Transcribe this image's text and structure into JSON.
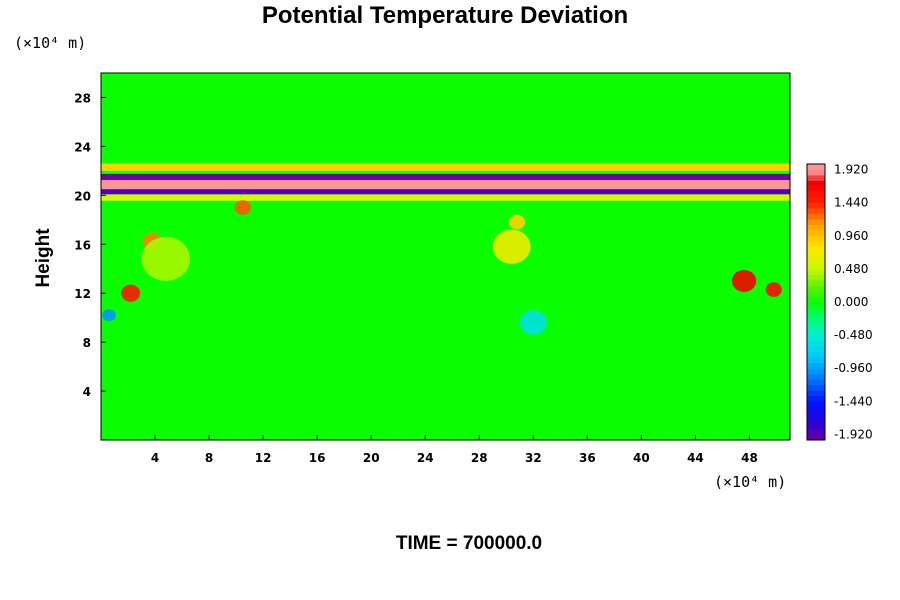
{
  "chart_data": {
    "type": "heatmap",
    "title": "Potential Temperature Deviation",
    "ylabel": "Height",
    "x_unit_label": "(×10⁴ m)",
    "y_unit_label": "(×10⁴ m)",
    "xlim": [
      0,
      51
    ],
    "ylim": [
      0,
      30
    ],
    "x_ticks": [
      4,
      8,
      12,
      16,
      20,
      24,
      28,
      32,
      36,
      40,
      44,
      48
    ],
    "x_tick_labels": [
      "4",
      "8",
      "12",
      "16",
      "20",
      "24",
      "28",
      "32",
      "36",
      "40",
      "44",
      "48"
    ],
    "y_ticks": [
      4,
      8,
      12,
      16,
      20,
      24,
      28
    ],
    "y_tick_labels": [
      "4",
      "8",
      "12",
      "16",
      "20",
      "24",
      "28"
    ],
    "colorbar": {
      "range": [
        -2.0,
        2.0
      ],
      "step": 0.08,
      "ticks": [
        1.92,
        1.44,
        0.96,
        0.48,
        0.0,
        -0.48,
        -0.96,
        -1.44,
        -1.92
      ],
      "tick_labels": [
        "1.920",
        "1.440",
        "0.960",
        "0.480",
        "0.000",
        "-0.480",
        "-0.960",
        "-1.440",
        "-1.920"
      ]
    },
    "background_value": 0.0,
    "features": [
      {
        "kind": "band",
        "y_center": 20.8,
        "thickness": 1.4,
        "value": 1.95
      },
      {
        "kind": "band",
        "y_center": 21.5,
        "thickness": 0.5,
        "value": -2.0
      },
      {
        "kind": "band",
        "y_center": 20.3,
        "thickness": 0.4,
        "value": -1.9
      },
      {
        "kind": "band",
        "y_center": 22.3,
        "thickness": 0.6,
        "value": 0.9
      },
      {
        "kind": "band",
        "y_center": 19.8,
        "thickness": 0.5,
        "value": 0.6
      },
      {
        "kind": "blob",
        "x": 2.2,
        "y": 12.0,
        "r": 0.7,
        "value": 1.5
      },
      {
        "kind": "blob",
        "x": 3.8,
        "y": 16.2,
        "r": 0.7,
        "value": 1.2
      },
      {
        "kind": "blob",
        "x": 10.5,
        "y": 19.0,
        "r": 0.6,
        "value": 1.3
      },
      {
        "kind": "blob",
        "x": 47.6,
        "y": 13.0,
        "r": 0.9,
        "value": 1.7
      },
      {
        "kind": "blob",
        "x": 49.8,
        "y": 12.3,
        "r": 0.6,
        "value": 1.6
      },
      {
        "kind": "blob",
        "x": 30.4,
        "y": 15.8,
        "r": 1.4,
        "value": 0.7
      },
      {
        "kind": "blob",
        "x": 4.8,
        "y": 14.8,
        "r": 1.8,
        "value": 0.4
      },
      {
        "kind": "blob",
        "x": 32.0,
        "y": 9.6,
        "r": 1.0,
        "value": -0.6
      },
      {
        "kind": "blob",
        "x": 0.6,
        "y": 10.2,
        "r": 0.5,
        "value": -1.0
      },
      {
        "kind": "blob",
        "x": 30.8,
        "y": 17.8,
        "r": 0.6,
        "value": 0.9
      }
    ],
    "annotation": "TIME = 700000.0"
  }
}
